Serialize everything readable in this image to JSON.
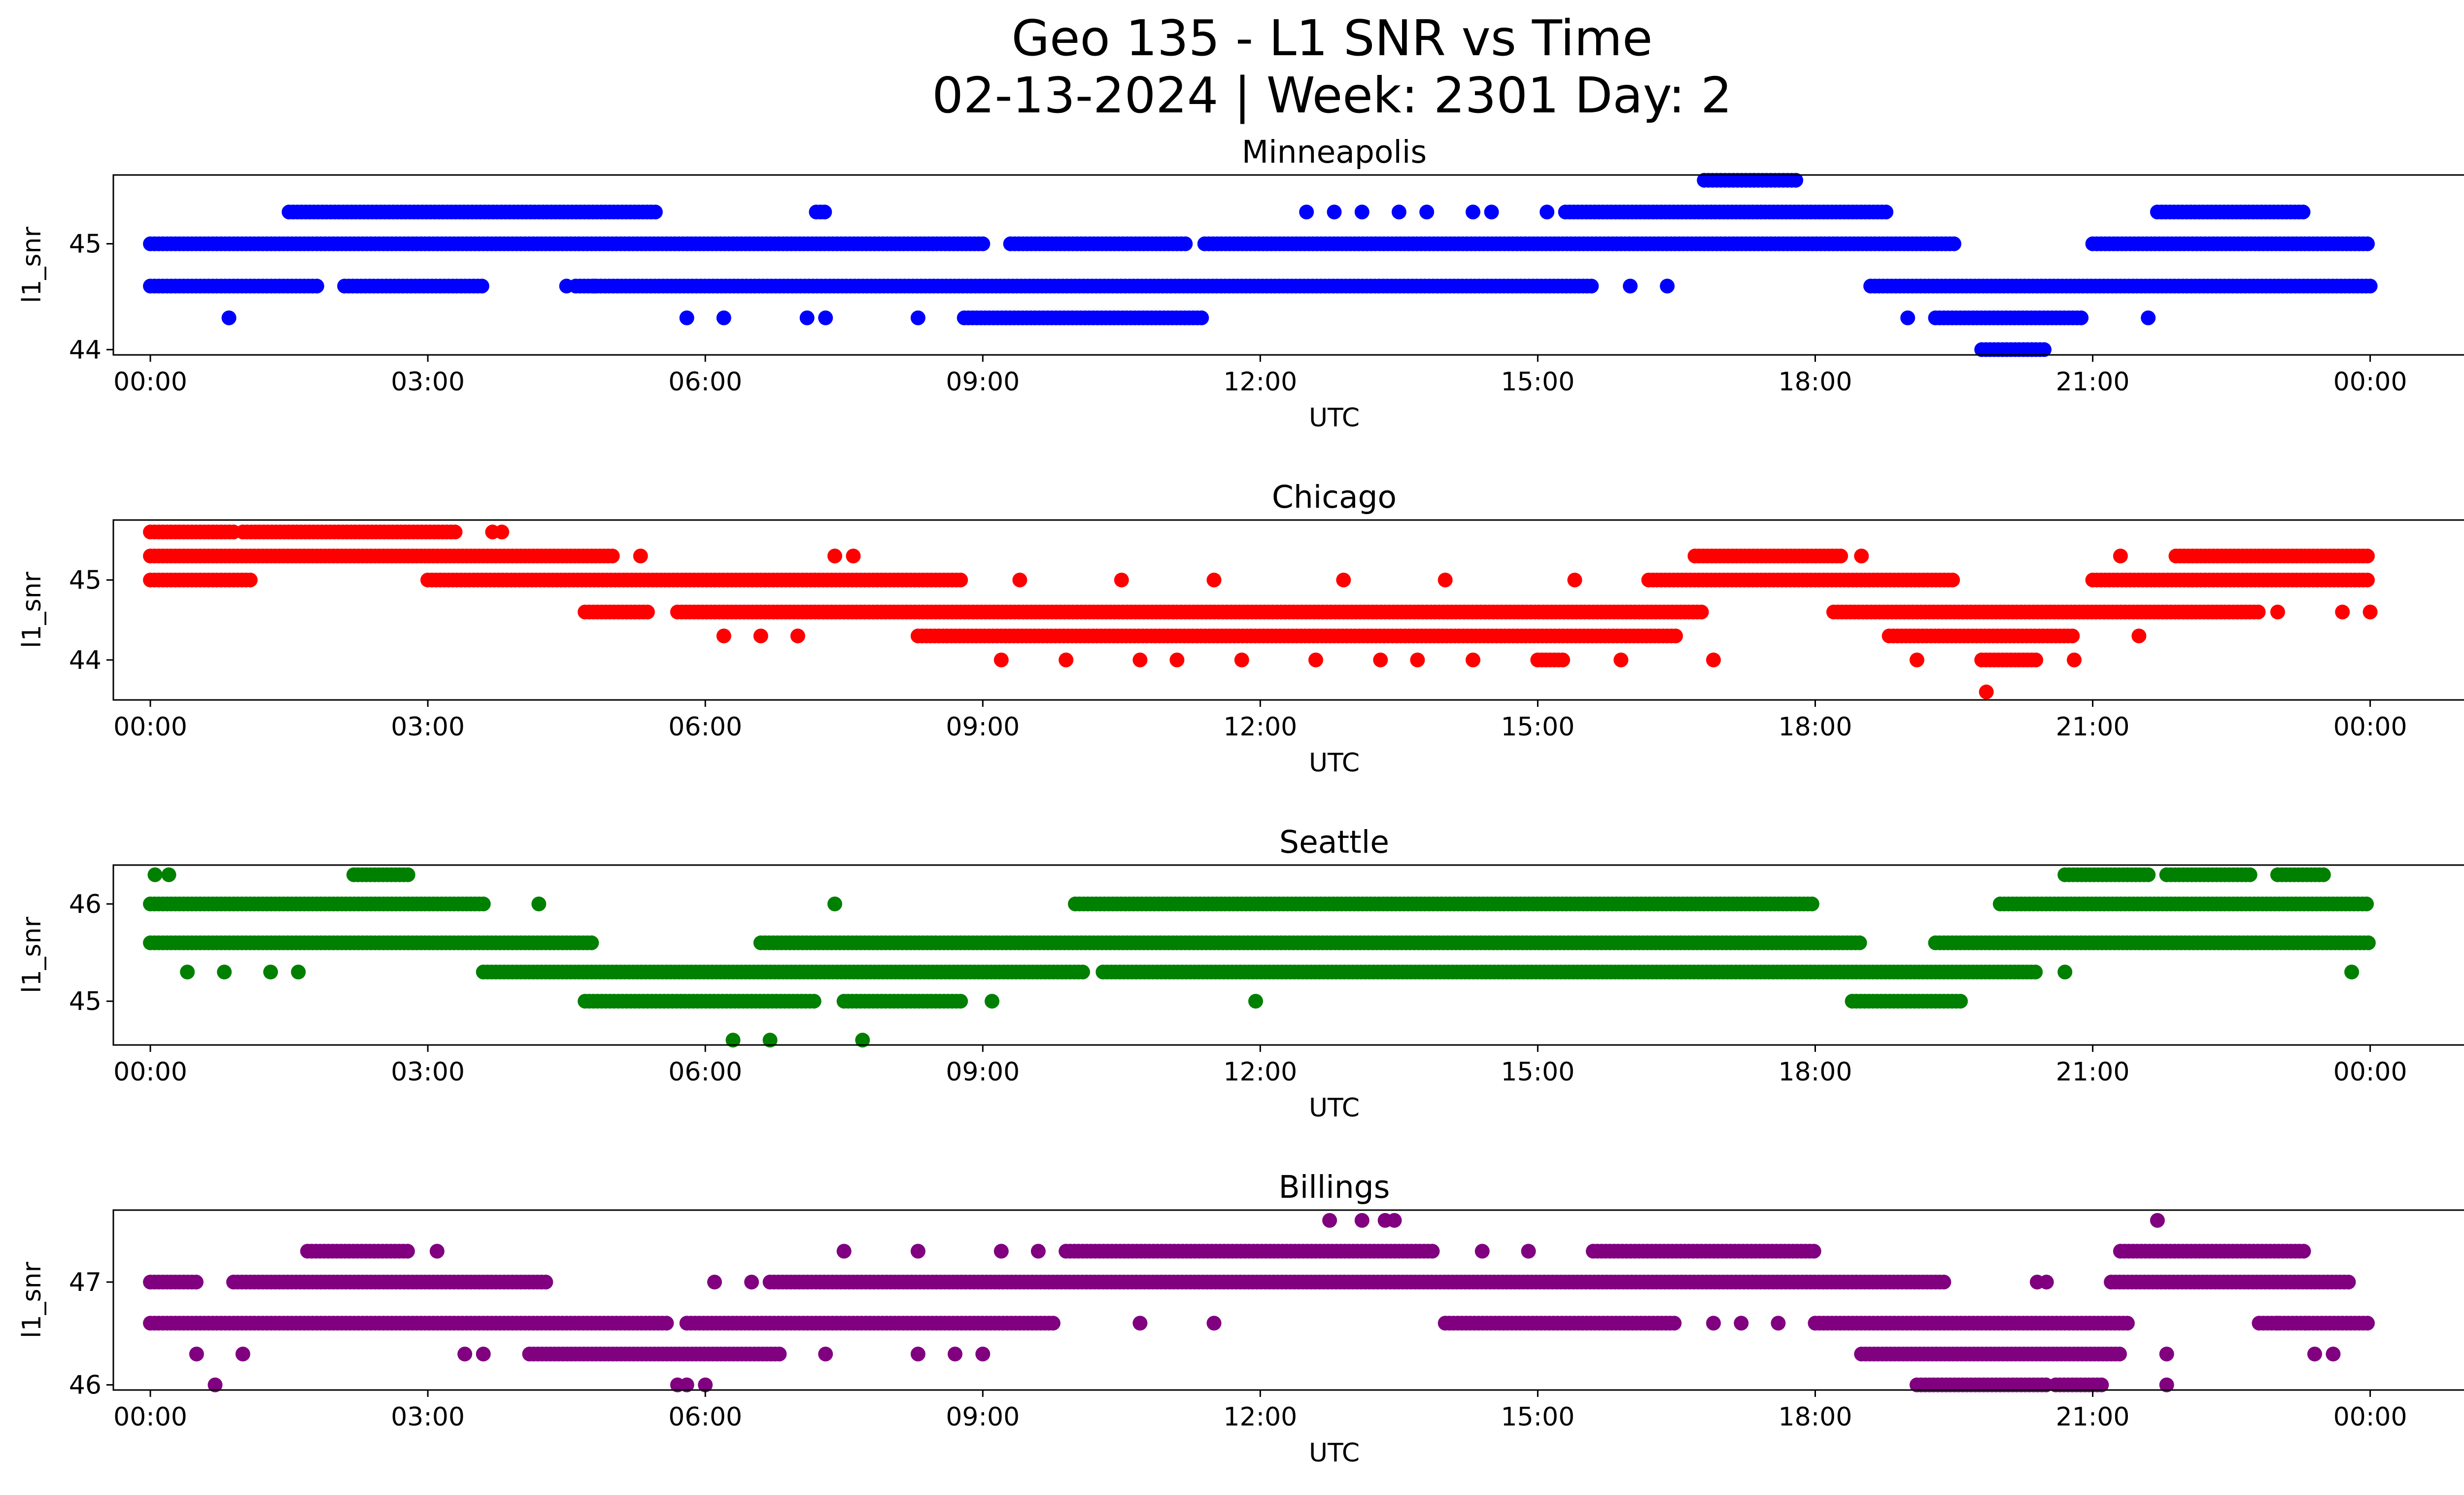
{
  "figure": {
    "title_line1": "Geo 135 - L1 SNR vs Time",
    "title_line2": "02-13-2024 | Week: 2301 Day: 2"
  },
  "chart_data": [
    {
      "type": "scatter",
      "title": "Minneapolis",
      "xlabel": "UTC",
      "ylabel": "l1_snr",
      "color": "#0000ff",
      "xlim_hours": [
        -0.4,
        26.0
      ],
      "ylim": [
        43.95,
        45.65
      ],
      "xticks": [
        "00:00",
        "03:00",
        "06:00",
        "09:00",
        "12:00",
        "15:00",
        "18:00",
        "21:00",
        "00:00"
      ],
      "yticks": [
        44,
        45
      ],
      "bands": [
        {
          "y": 45.0,
          "segments": [
            [
              0.0,
              9.0
            ],
            [
              9.3,
              11.2
            ],
            [
              11.4,
              19.5
            ],
            [
              21.0,
              24.0
            ]
          ]
        },
        {
          "y": 44.6,
          "segments": [
            [
              0.0,
              1.8
            ],
            [
              2.1,
              3.6
            ],
            [
              4.6,
              15.6
            ],
            [
              18.6,
              24.0
            ]
          ]
        },
        {
          "y": 45.3,
          "segments": [
            [
              1.5,
              5.5
            ],
            [
              7.2,
              7.3
            ],
            [
              15.3,
              18.8
            ],
            [
              21.7,
              23.3
            ]
          ]
        },
        {
          "y": 44.3,
          "segments": [
            [
              8.8,
              11.4
            ],
            [
              19.3,
              20.9
            ]
          ]
        },
        {
          "y": 45.6,
          "segments": [
            [
              16.8,
              17.8
            ]
          ]
        },
        {
          "y": 44.0,
          "segments": [
            [
              19.8,
              20.5
            ]
          ]
        }
      ],
      "points": [
        {
          "x": 0.85,
          "y": 44.3
        },
        {
          "x": 5.8,
          "y": 44.3
        },
        {
          "x": 6.2,
          "y": 44.3
        },
        {
          "x": 7.1,
          "y": 44.3
        },
        {
          "x": 7.3,
          "y": 44.3
        },
        {
          "x": 8.3,
          "y": 44.3
        },
        {
          "x": 4.5,
          "y": 44.6
        },
        {
          "x": 4.8,
          "y": 44.6
        },
        {
          "x": 16.0,
          "y": 44.6
        },
        {
          "x": 16.4,
          "y": 44.6
        },
        {
          "x": 12.5,
          "y": 45.3
        },
        {
          "x": 12.8,
          "y": 45.3
        },
        {
          "x": 13.1,
          "y": 45.3
        },
        {
          "x": 13.5,
          "y": 45.3
        },
        {
          "x": 13.8,
          "y": 45.3
        },
        {
          "x": 14.3,
          "y": 45.3
        },
        {
          "x": 14.5,
          "y": 45.3
        },
        {
          "x": 15.1,
          "y": 45.3
        },
        {
          "x": 19.0,
          "y": 44.3
        },
        {
          "x": 21.6,
          "y": 44.3
        }
      ]
    },
    {
      "type": "scatter",
      "title": "Chicago",
      "xlabel": "UTC",
      "ylabel": "l1_snr",
      "color": "#ff0000",
      "xlim_hours": [
        -0.4,
        26.0
      ],
      "ylim": [
        43.5,
        45.75
      ],
      "xticks": [
        "00:00",
        "03:00",
        "06:00",
        "09:00",
        "12:00",
        "15:00",
        "18:00",
        "21:00",
        "00:00"
      ],
      "yticks": [
        44,
        45
      ],
      "bands": [
        {
          "y": 45.6,
          "segments": [
            [
              0.0,
              0.9
            ],
            [
              1.0,
              3.3
            ]
          ]
        },
        {
          "y": 45.3,
          "segments": [
            [
              0.0,
              5.0
            ],
            [
              16.7,
              18.3
            ],
            [
              21.9,
              24.0
            ]
          ]
        },
        {
          "y": 45.0,
          "segments": [
            [
              0.0,
              1.1
            ],
            [
              3.0,
              8.8
            ],
            [
              16.2,
              19.5
            ],
            [
              21.0,
              24.0
            ]
          ]
        },
        {
          "y": 44.6,
          "segments": [
            [
              4.7,
              5.4
            ],
            [
              5.7,
              16.8
            ],
            [
              18.2,
              22.8
            ]
          ]
        },
        {
          "y": 44.3,
          "segments": [
            [
              8.3,
              16.5
            ],
            [
              18.8,
              20.8
            ]
          ]
        },
        {
          "y": 44.0,
          "segments": [
            [
              15.0,
              15.3
            ],
            [
              19.8,
              20.4
            ]
          ]
        }
      ],
      "points": [
        {
          "x": 3.7,
          "y": 45.6
        },
        {
          "x": 3.8,
          "y": 45.6
        },
        {
          "x": 5.3,
          "y": 45.3
        },
        {
          "x": 7.4,
          "y": 45.3
        },
        {
          "x": 7.6,
          "y": 45.3
        },
        {
          "x": 9.4,
          "y": 45.0
        },
        {
          "x": 10.5,
          "y": 45.0
        },
        {
          "x": 11.5,
          "y": 45.0
        },
        {
          "x": 12.9,
          "y": 45.0
        },
        {
          "x": 14.0,
          "y": 45.0
        },
        {
          "x": 15.4,
          "y": 45.0
        },
        {
          "x": 6.2,
          "y": 44.3
        },
        {
          "x": 6.6,
          "y": 44.3
        },
        {
          "x": 7.0,
          "y": 44.3
        },
        {
          "x": 9.2,
          "y": 44.0
        },
        {
          "x": 9.9,
          "y": 44.0
        },
        {
          "x": 10.7,
          "y": 44.0
        },
        {
          "x": 11.1,
          "y": 44.0
        },
        {
          "x": 11.8,
          "y": 44.0
        },
        {
          "x": 12.6,
          "y": 44.0
        },
        {
          "x": 13.3,
          "y": 44.0
        },
        {
          "x": 13.7,
          "y": 44.0
        },
        {
          "x": 14.3,
          "y": 44.0
        },
        {
          "x": 15.9,
          "y": 44.0
        },
        {
          "x": 16.9,
          "y": 44.0
        },
        {
          "x": 19.1,
          "y": 44.0
        },
        {
          "x": 20.8,
          "y": 44.0
        },
        {
          "x": 19.85,
          "y": 43.6
        },
        {
          "x": 18.5,
          "y": 45.3
        },
        {
          "x": 21.3,
          "y": 45.3
        },
        {
          "x": 21.5,
          "y": 44.3
        },
        {
          "x": 23.0,
          "y": 44.6
        },
        {
          "x": 23.7,
          "y": 44.6
        },
        {
          "x": 24.0,
          "y": 44.6
        }
      ]
    },
    {
      "type": "scatter",
      "title": "Seattle",
      "xlabel": "UTC",
      "ylabel": "l1_snr",
      "color": "#008000",
      "xlim_hours": [
        -0.4,
        26.0
      ],
      "ylim": [
        44.55,
        46.4
      ],
      "xticks": [
        "00:00",
        "03:00",
        "06:00",
        "09:00",
        "12:00",
        "15:00",
        "18:00",
        "21:00",
        "00:00"
      ],
      "yticks": [
        45,
        46
      ],
      "bands": [
        {
          "y": 46.0,
          "segments": [
            [
              0.0,
              3.6
            ],
            [
              10.0,
              18.0
            ],
            [
              20.0,
              24.0
            ]
          ]
        },
        {
          "y": 45.6,
          "segments": [
            [
              0.0,
              4.8
            ],
            [
              6.6,
              18.5
            ],
            [
              19.3,
              24.0
            ]
          ]
        },
        {
          "y": 45.3,
          "segments": [
            [
              3.6,
              10.1
            ],
            [
              10.3,
              20.4
            ]
          ]
        },
        {
          "y": 45.0,
          "segments": [
            [
              4.7,
              7.2
            ],
            [
              7.5,
              8.8
            ],
            [
              18.4,
              19.6
            ]
          ]
        },
        {
          "y": 46.3,
          "segments": [
            [
              2.2,
              2.8
            ],
            [
              20.7,
              21.6
            ],
            [
              21.8,
              22.7
            ],
            [
              23.0,
              23.5
            ]
          ]
        }
      ],
      "points": [
        {
          "x": 0.05,
          "y": 46.3
        },
        {
          "x": 0.2,
          "y": 46.3
        },
        {
          "x": 0.4,
          "y": 45.3
        },
        {
          "x": 0.8,
          "y": 45.3
        },
        {
          "x": 1.3,
          "y": 45.3
        },
        {
          "x": 1.6,
          "y": 45.3
        },
        {
          "x": 7.4,
          "y": 46.0
        },
        {
          "x": 4.2,
          "y": 46.0
        },
        {
          "x": 9.1,
          "y": 45.0
        },
        {
          "x": 11.95,
          "y": 45.0
        },
        {
          "x": 20.7,
          "y": 45.3
        },
        {
          "x": 23.8,
          "y": 45.3
        },
        {
          "x": 6.3,
          "y": 44.6
        },
        {
          "x": 6.7,
          "y": 44.6
        },
        {
          "x": 7.7,
          "y": 44.6
        }
      ]
    },
    {
      "type": "scatter",
      "title": "Billings",
      "xlabel": "UTC",
      "ylabel": "l1_snr",
      "color": "#800080",
      "xlim_hours": [
        -0.4,
        26.0
      ],
      "ylim": [
        45.95,
        47.7
      ],
      "xticks": [
        "00:00",
        "03:00",
        "06:00",
        "09:00",
        "12:00",
        "15:00",
        "18:00",
        "21:00",
        "00:00"
      ],
      "yticks": [
        46,
        47
      ],
      "bands": [
        {
          "y": 47.0,
          "segments": [
            [
              0.0,
              0.5
            ],
            [
              0.9,
              4.3
            ],
            [
              6.7,
              19.4
            ],
            [
              21.2,
              23.8
            ]
          ]
        },
        {
          "y": 46.6,
          "segments": [
            [
              0.0,
              5.6
            ],
            [
              5.8,
              9.8
            ],
            [
              14.0,
              16.5
            ],
            [
              18.0,
              21.4
            ],
            [
              22.8,
              24.0
            ]
          ]
        },
        {
          "y": 47.3,
          "segments": [
            [
              1.7,
              2.8
            ],
            [
              9.9,
              13.9
            ],
            [
              15.6,
              18.0
            ],
            [
              21.3,
              23.3
            ]
          ]
        },
        {
          "y": 46.3,
          "segments": [
            [
              4.1,
              6.8
            ],
            [
              18.5,
              21.3
            ]
          ]
        },
        {
          "y": 46.0,
          "segments": [
            [
              19.1,
              20.5
            ],
            [
              20.6,
              21.1
            ]
          ]
        }
      ],
      "points": [
        {
          "x": 0.7,
          "y": 46.0
        },
        {
          "x": 5.7,
          "y": 46.0
        },
        {
          "x": 5.8,
          "y": 46.0
        },
        {
          "x": 6.0,
          "y": 46.0
        },
        {
          "x": 0.5,
          "y": 46.3
        },
        {
          "x": 1.0,
          "y": 46.3
        },
        {
          "x": 3.4,
          "y": 46.3
        },
        {
          "x": 3.6,
          "y": 46.3
        },
        {
          "x": 7.3,
          "y": 46.3
        },
        {
          "x": 8.3,
          "y": 46.3
        },
        {
          "x": 8.7,
          "y": 46.3
        },
        {
          "x": 9.0,
          "y": 46.3
        },
        {
          "x": 3.1,
          "y": 47.3
        },
        {
          "x": 7.5,
          "y": 47.3
        },
        {
          "x": 8.3,
          "y": 47.3
        },
        {
          "x": 9.2,
          "y": 47.3
        },
        {
          "x": 9.6,
          "y": 47.3
        },
        {
          "x": 14.4,
          "y": 47.3
        },
        {
          "x": 14.9,
          "y": 47.3
        },
        {
          "x": 12.75,
          "y": 47.6
        },
        {
          "x": 13.1,
          "y": 47.6
        },
        {
          "x": 13.35,
          "y": 47.6
        },
        {
          "x": 13.45,
          "y": 47.6
        },
        {
          "x": 6.1,
          "y": 47.0
        },
        {
          "x": 6.5,
          "y": 47.0
        },
        {
          "x": 10.7,
          "y": 46.6
        },
        {
          "x": 11.5,
          "y": 46.6
        },
        {
          "x": 16.9,
          "y": 46.6
        },
        {
          "x": 17.2,
          "y": 46.6
        },
        {
          "x": 17.6,
          "y": 46.6
        },
        {
          "x": 20.4,
          "y": 47.0
        },
        {
          "x": 20.5,
          "y": 47.0
        },
        {
          "x": 21.7,
          "y": 47.6
        },
        {
          "x": 21.8,
          "y": 46.3
        },
        {
          "x": 21.8,
          "y": 46.0
        },
        {
          "x": 23.4,
          "y": 46.3
        },
        {
          "x": 23.6,
          "y": 46.3
        },
        {
          "x": 23.0,
          "y": 46.6
        },
        {
          "x": 23.3,
          "y": 46.6
        }
      ]
    }
  ]
}
